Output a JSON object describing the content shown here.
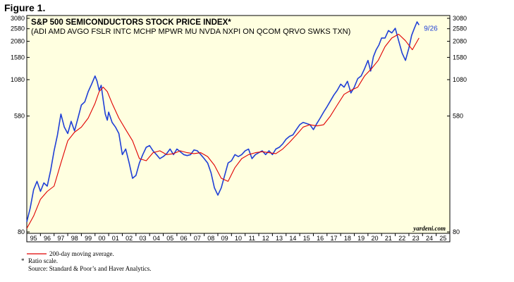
{
  "figure_label": "Figure 1.",
  "credit": "yardeni.com",
  "footnotes": {
    "legend_text": "200-day moving average.",
    "ratio_marker": "*",
    "ratio_text": "Ratio scale.",
    "source": "Source: Standard & Poor’s and Haver Analytics."
  },
  "colors": {
    "background": "#ffffe0",
    "index_line": "#1f3fd6",
    "moving_average": "#e00000",
    "frame": "#000000"
  },
  "chart_data": {
    "type": "line",
    "title": "S&P 500 SEMICONDUCTORS STOCK PRICE INDEX*",
    "subtitle": "(ADI AMD AVGO FSLR INTC MCHP MPWR MU NVDA NXPI ON QCOM QRVO SWKS TXN)",
    "y_scale": "log",
    "ylim": [
      80,
      3080
    ],
    "y_ticks": [
      80,
      580,
      1080,
      1580,
      2080,
      2580,
      3080
    ],
    "xlim": [
      1995,
      2026
    ],
    "x_tick_labels": [
      "95",
      "96",
      "97",
      "98",
      "99",
      "00",
      "01",
      "02",
      "03",
      "04",
      "05",
      "06",
      "07",
      "08",
      "09",
      "10",
      "11",
      "12",
      "13",
      "14",
      "15",
      "16",
      "17",
      "18",
      "19",
      "20",
      "21",
      "22",
      "23",
      "24",
      "25"
    ],
    "grid": false,
    "annotation": {
      "text": "9/26",
      "x": 2023.74,
      "y": 2750
    },
    "series": [
      {
        "name": "S&P 500 Semiconductors",
        "x": [
          1995.0,
          1995.25,
          1995.5,
          1995.75,
          1996.0,
          1996.25,
          1996.5,
          1996.75,
          1997.0,
          1997.25,
          1997.5,
          1997.75,
          1998.0,
          1998.25,
          1998.5,
          1998.75,
          1999.0,
          1999.25,
          1999.5,
          1999.75,
          2000.0,
          2000.15,
          2000.3,
          2000.45,
          2000.6,
          2000.75,
          2000.9,
          2001.0,
          2001.25,
          2001.5,
          2001.75,
          2002.0,
          2002.25,
          2002.5,
          2002.75,
          2003.0,
          2003.25,
          2003.5,
          2003.75,
          2004.0,
          2004.25,
          2004.5,
          2004.75,
          2005.0,
          2005.25,
          2005.5,
          2005.75,
          2006.0,
          2006.25,
          2006.5,
          2006.75,
          2007.0,
          2007.25,
          2007.5,
          2007.75,
          2008.0,
          2008.25,
          2008.5,
          2008.75,
          2009.0,
          2009.25,
          2009.5,
          2009.75,
          2010.0,
          2010.25,
          2010.5,
          2010.75,
          2011.0,
          2011.25,
          2011.5,
          2011.75,
          2012.0,
          2012.25,
          2012.5,
          2012.75,
          2013.0,
          2013.25,
          2013.5,
          2013.75,
          2014.0,
          2014.25,
          2014.5,
          2014.75,
          2015.0,
          2015.25,
          2015.5,
          2015.75,
          2016.0,
          2016.25,
          2016.5,
          2016.75,
          2017.0,
          2017.25,
          2017.5,
          2017.75,
          2018.0,
          2018.25,
          2018.5,
          2018.75,
          2019.0,
          2019.25,
          2019.5,
          2019.75,
          2020.0,
          2020.2,
          2020.4,
          2020.6,
          2020.8,
          2021.0,
          2021.25,
          2021.5,
          2021.75,
          2022.0,
          2022.25,
          2022.5,
          2022.75,
          2023.0,
          2023.2,
          2023.4,
          2023.6,
          2023.74
        ],
        "y": [
          95,
          120,
          165,
          190,
          160,
          185,
          175,
          230,
          320,
          420,
          600,
          480,
          430,
          530,
          450,
          560,
          700,
          740,
          880,
          1000,
          1150,
          1050,
          900,
          980,
          760,
          600,
          540,
          620,
          520,
          480,
          430,
          300,
          330,
          260,
          200,
          210,
          260,
          300,
          340,
          350,
          320,
          300,
          280,
          290,
          305,
          330,
          300,
          330,
          315,
          300,
          295,
          300,
          325,
          320,
          300,
          280,
          260,
          220,
          170,
          150,
          170,
          210,
          260,
          270,
          300,
          290,
          300,
          320,
          330,
          280,
          300,
          310,
          320,
          300,
          320,
          300,
          330,
          340,
          360,
          390,
          410,
          420,
          460,
          500,
          520,
          510,
          500,
          460,
          510,
          560,
          620,
          680,
          750,
          830,
          900,
          1000,
          950,
          1050,
          860,
          950,
          1100,
          1150,
          1300,
          1500,
          1250,
          1600,
          1800,
          1950,
          2200,
          2200,
          2500,
          2400,
          2600,
          2100,
          1700,
          1500,
          1850,
          2300,
          2600,
          2900,
          2750
        ]
      },
      {
        "name": "200-day moving average",
        "x": [
          1995.0,
          1995.5,
          1996.0,
          1996.5,
          1997.0,
          1997.5,
          1998.0,
          1998.5,
          1999.0,
          1999.5,
          2000.0,
          2000.3,
          2000.6,
          2000.9,
          2001.25,
          2001.75,
          2002.25,
          2002.75,
          2003.25,
          2003.75,
          2004.25,
          2004.75,
          2005.25,
          2005.75,
          2006.25,
          2006.75,
          2007.25,
          2007.75,
          2008.25,
          2008.75,
          2009.25,
          2009.75,
          2010.25,
          2010.75,
          2011.25,
          2011.75,
          2012.25,
          2012.75,
          2013.25,
          2013.75,
          2014.25,
          2014.75,
          2015.25,
          2015.75,
          2016.25,
          2016.75,
          2017.25,
          2017.75,
          2018.25,
          2018.75,
          2019.25,
          2019.75,
          2020.25,
          2020.75,
          2021.25,
          2021.75,
          2022.25,
          2022.75,
          2023.25,
          2023.74
        ],
        "y": [
          85,
          105,
          140,
          160,
          175,
          260,
          380,
          440,
          480,
          560,
          720,
          880,
          950,
          880,
          720,
          560,
          460,
          380,
          280,
          270,
          310,
          320,
          300,
          305,
          320,
          310,
          305,
          310,
          290,
          250,
          200,
          190,
          240,
          280,
          300,
          310,
          315,
          310,
          305,
          330,
          370,
          420,
          480,
          500,
          490,
          500,
          580,
          700,
          840,
          900,
          950,
          1150,
          1300,
          1500,
          1900,
          2200,
          2350,
          2100,
          1800,
          2200
        ]
      }
    ]
  }
}
